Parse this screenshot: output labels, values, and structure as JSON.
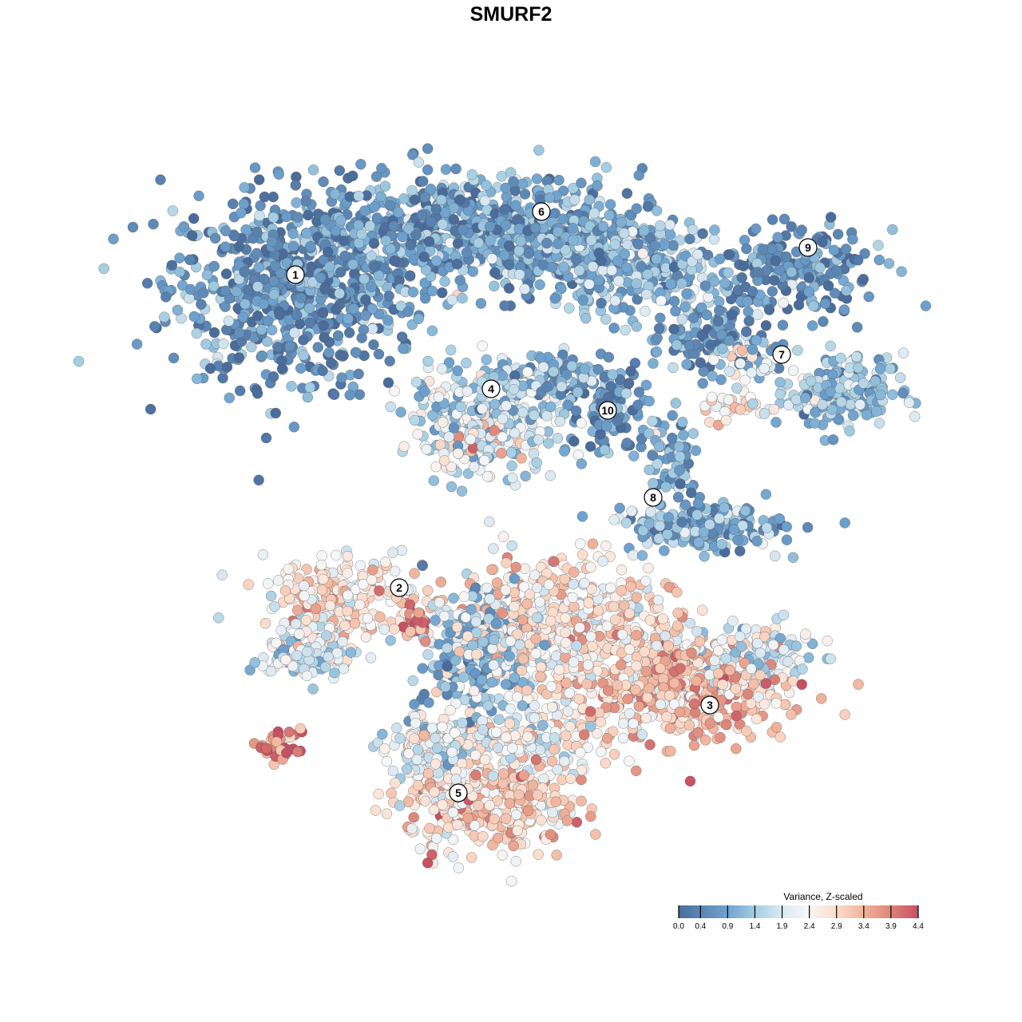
{
  "chart_data": {
    "type": "scatter",
    "title": "SMURF2",
    "xlabel": "",
    "ylabel": "",
    "axes_visible": false,
    "grid": false,
    "xlim": [
      -50,
      50
    ],
    "ylim": [
      -50,
      50
    ],
    "color_scale": {
      "title": "Variance, Z-scaled",
      "range": [
        0.0,
        4.4
      ],
      "ticks": [
        "0.0",
        "0.4",
        "0.9",
        "1.4",
        "1.9",
        "2.4",
        "2.9",
        "3.4",
        "3.9",
        "4.4"
      ],
      "colors": [
        {
          "v": 0.0,
          "c": "#4a6c9b"
        },
        {
          "v": 0.9,
          "c": "#6fa3cf"
        },
        {
          "v": 1.4,
          "c": "#a4cde1"
        },
        {
          "v": 1.9,
          "c": "#dbe9f2"
        },
        {
          "v": 2.4,
          "c": "#f7f7f7"
        },
        {
          "v": 2.9,
          "c": "#fbdccb"
        },
        {
          "v": 3.4,
          "c": "#f1b39b"
        },
        {
          "v": 3.9,
          "c": "#dd8479"
        },
        {
          "v": 4.4,
          "c": "#c55062"
        }
      ],
      "legend_position": "bottom-right"
    },
    "cluster_labels": [
      {
        "label": "1",
        "x": -27.0,
        "y": 29.6
      },
      {
        "label": "2",
        "x": -14.0,
        "y": -9.6
      },
      {
        "label": "3",
        "x": 24.9,
        "y": -24.3
      },
      {
        "label": "4",
        "x": -2.5,
        "y": 15.3
      },
      {
        "label": "5",
        "x": -6.6,
        "y": -35.3
      },
      {
        "label": "6",
        "x": 3.8,
        "y": 37.5
      },
      {
        "label": "7",
        "x": 33.9,
        "y": 19.6
      },
      {
        "label": "8",
        "x": 17.8,
        "y": 1.7
      },
      {
        "label": "9",
        "x": 37.2,
        "y": 33.0
      },
      {
        "label": "10",
        "x": 12.1,
        "y": 12.6
      }
    ],
    "point_groups": [
      {
        "x": -27,
        "y": 28,
        "sx": 8,
        "sy": 6,
        "n": 700,
        "mean": 0.6
      },
      {
        "x": -6,
        "y": 35,
        "sx": 11,
        "sy": 3.5,
        "n": 650,
        "mean": 0.8
      },
      {
        "x": 8,
        "y": 33,
        "sx": 7,
        "sy": 3,
        "n": 300,
        "mean": 1.0
      },
      {
        "x": 16,
        "y": 30,
        "sx": 5,
        "sy": 2.5,
        "n": 200,
        "mean": 1.2
      },
      {
        "x": 36,
        "y": 30,
        "sx": 5,
        "sy": 2.5,
        "n": 200,
        "mean": 0.6
      },
      {
        "x": 25,
        "y": 22,
        "sx": 4,
        "sy": 2.5,
        "n": 150,
        "mean": 0.6
      },
      {
        "x": 41,
        "y": 15,
        "sx": 4,
        "sy": 2.2,
        "n": 200,
        "mean": 1.3
      },
      {
        "x": 30,
        "y": 19,
        "sx": 2,
        "sy": 1.2,
        "n": 30,
        "mean": 2.3
      },
      {
        "x": -3,
        "y": 12,
        "sx": 5,
        "sy": 3.5,
        "n": 300,
        "mean": 1.6
      },
      {
        "x": -5,
        "y": 9,
        "sx": 3,
        "sy": 2,
        "n": 70,
        "mean": 2.7
      },
      {
        "x": 12,
        "y": 13,
        "sx": 2.2,
        "sy": 3,
        "n": 100,
        "mean": 0.6
      },
      {
        "x": 6,
        "y": 17,
        "sx": 4,
        "sy": 1.5,
        "n": 100,
        "mean": 1.0
      },
      {
        "x": 24,
        "y": -2,
        "sx": 5,
        "sy": 1.5,
        "n": 200,
        "mean": 1.0
      },
      {
        "x": 20,
        "y": 6,
        "sx": 2,
        "sy": 3,
        "n": 80,
        "mean": 0.9
      },
      {
        "x": 27,
        "y": 13,
        "sx": 2,
        "sy": 1,
        "n": 30,
        "mean": 2.7
      },
      {
        "x": -21,
        "y": -11,
        "sx": 5,
        "sy": 2.5,
        "n": 250,
        "mean": 2.7
      },
      {
        "x": -25,
        "y": -18,
        "sx": 3,
        "sy": 1.5,
        "n": 120,
        "mean": 1.8
      },
      {
        "x": -12,
        "y": -14,
        "sx": 1,
        "sy": 1,
        "n": 30,
        "mean": 4.0
      },
      {
        "x": -29,
        "y": -29,
        "sx": 2,
        "sy": 1,
        "n": 40,
        "mean": 3.8
      },
      {
        "x": -4,
        "y": -18,
        "sx": 3,
        "sy": 3.5,
        "n": 300,
        "mean": 1.2
      },
      {
        "x": 6,
        "y": -15,
        "sx": 7,
        "sy": 4.5,
        "n": 600,
        "mean": 2.7
      },
      {
        "x": 22,
        "y": -22,
        "sx": 6,
        "sy": 3.5,
        "n": 450,
        "mean": 3.2
      },
      {
        "x": 31,
        "y": -18,
        "sx": 3.5,
        "sy": 2,
        "n": 120,
        "mean": 1.8
      },
      {
        "x": -3,
        "y": -37,
        "sx": 5,
        "sy": 3,
        "n": 350,
        "mean": 3.0
      },
      {
        "x": -10,
        "y": -30,
        "sx": 3,
        "sy": 2.5,
        "n": 150,
        "mean": 2.0
      },
      {
        "x": 1,
        "y": -29,
        "sx": 6,
        "sy": 2,
        "n": 200,
        "mean": 2.3
      }
    ]
  }
}
